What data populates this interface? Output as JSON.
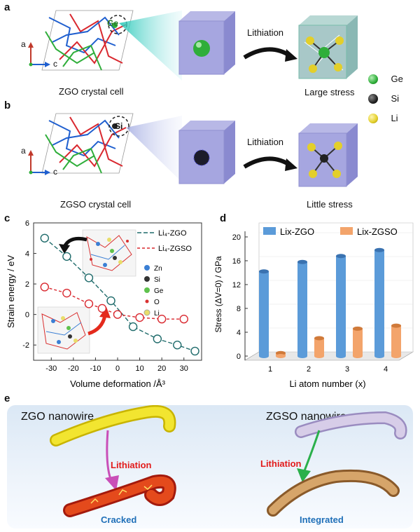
{
  "panels": {
    "a": {
      "label": "a",
      "crystal_caption": "ZGO crystal cell",
      "atom_mark": "Ge",
      "axes": {
        "a": "a",
        "c": "c"
      },
      "arrow_label": "Lithiation",
      "result": "Large stress"
    },
    "b": {
      "label": "b",
      "crystal_caption": "ZGSO crystal cell",
      "atom_mark": "Si",
      "axes": {
        "a": "a",
        "c": "c"
      },
      "arrow_label": "Lithiation",
      "result": "Little stress"
    },
    "legend_ab": [
      {
        "name": "Ge",
        "color": "#2fae3a"
      },
      {
        "name": "Si",
        "color": "#222222"
      },
      {
        "name": "Li",
        "color": "#e3cf2a"
      }
    ],
    "c": {
      "label": "c"
    },
    "d": {
      "label": "d"
    },
    "e": {
      "label": "e",
      "left_title": "ZGO nanowire",
      "right_title": "ZGSO nanowire",
      "left_arrow": "Lithiation",
      "right_arrow": "Lithiation",
      "left_result": "Cracked",
      "right_result": "Integrated"
    }
  },
  "chart_data": [
    {
      "type": "scatter",
      "panel": "c",
      "xlabel": "Volume deformation /Å³",
      "ylabel": "Strain energy / eV",
      "xlim": [
        -38,
        38
      ],
      "ylim": [
        -3,
        6
      ],
      "xticks": [
        -30,
        -20,
        -10,
        0,
        10,
        20,
        30
      ],
      "yticks": [
        -2,
        0,
        2,
        4,
        6
      ],
      "legend_position": "top-right",
      "series": [
        {
          "name": "Li₄-ZGO",
          "color": "#1f6b6b",
          "x": [
            -33,
            -23,
            -13,
            -3,
            7,
            18,
            27,
            35
          ],
          "y": [
            5.0,
            3.8,
            2.4,
            0.9,
            -0.8,
            -1.6,
            -2.0,
            -2.4
          ]
        },
        {
          "name": "Li₄-ZGSO",
          "color": "#d9282f",
          "x": [
            -33,
            -23,
            -13,
            -7,
            0,
            10,
            20,
            30
          ],
          "y": [
            1.8,
            1.4,
            0.7,
            0.4,
            0.0,
            -0.2,
            -0.3,
            -0.3
          ]
        }
      ],
      "inset_legend": [
        {
          "name": "Zn",
          "color": "#3b7fd4"
        },
        {
          "name": "Si",
          "color": "#333333"
        },
        {
          "name": "Ge",
          "color": "#5fc24d"
        },
        {
          "name": "O",
          "color": "#d93030"
        },
        {
          "name": "Li",
          "color": "#e8dd6a"
        }
      ]
    },
    {
      "type": "bar",
      "panel": "d",
      "categories": [
        "1",
        "2",
        "3",
        "4"
      ],
      "xlabel": "Li atom number (x)",
      "ylabel": "Stress (ΔV=0) / GPa",
      "ylim": [
        0,
        20
      ],
      "yticks": [
        0,
        4,
        8,
        12,
        16,
        20
      ],
      "legend_position": "top",
      "series": [
        {
          "name": "Lix-ZGO",
          "color": "#5b9bd9",
          "values": [
            14.2,
            15.8,
            16.8,
            17.8
          ]
        },
        {
          "name": "Lix-ZGSO",
          "color": "#f3a46b",
          "values": [
            0.5,
            3.0,
            4.6,
            5.1
          ]
        }
      ]
    }
  ]
}
